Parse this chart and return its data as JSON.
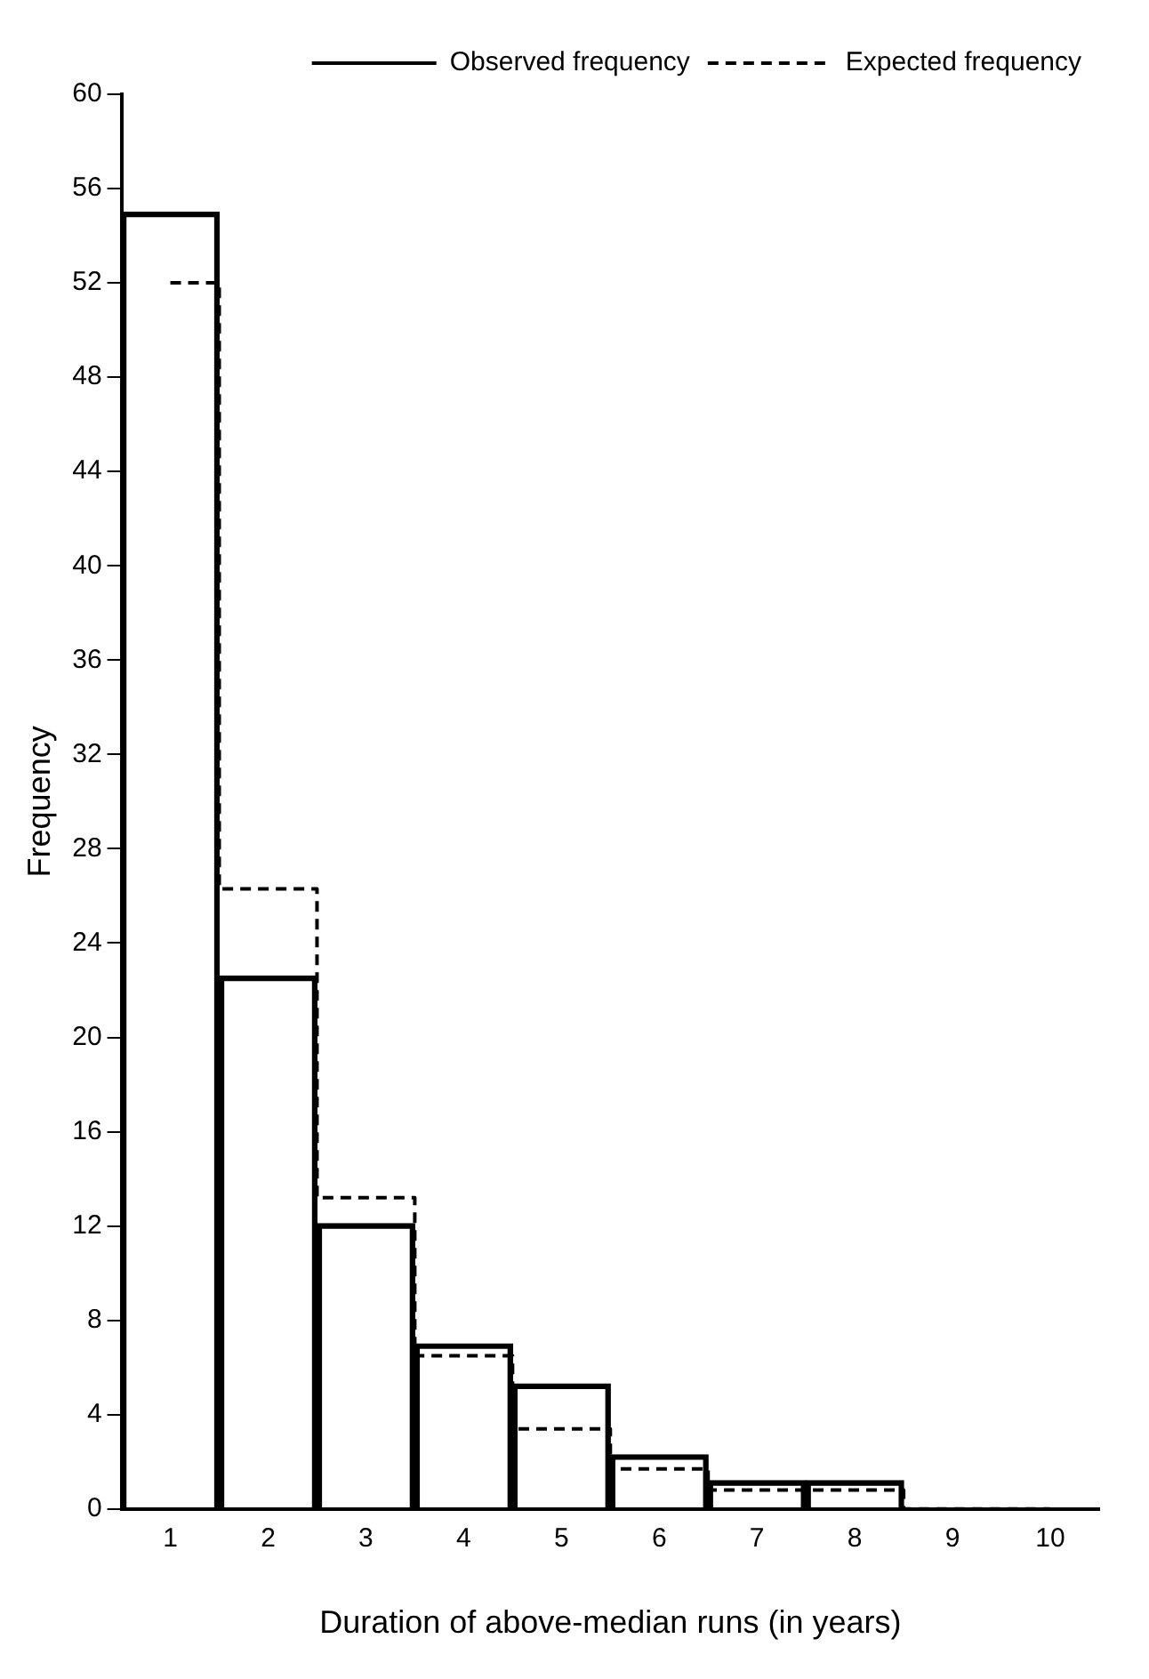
{
  "chart_data": {
    "type": "bar",
    "xlabel": "Duration of above-median runs (in years)",
    "ylabel": "Frequency",
    "categories": [
      "1",
      "2",
      "3",
      "4",
      "5",
      "6",
      "7",
      "8",
      "9",
      "10"
    ],
    "series": [
      {
        "name": "Observed frequency",
        "color": "#000000",
        "values": [
          55,
          22.6,
          12.1,
          7,
          5.3,
          2.3,
          1.2,
          1.2,
          0,
          0
        ]
      },
      {
        "name": "Expected frequency",
        "type": "step",
        "line_style": "dashed",
        "color": "#000000",
        "values": [
          52,
          26.3,
          13.2,
          6.5,
          3.4,
          1.7,
          0.8,
          0.8,
          0,
          0
        ]
      }
    ],
    "ylim": [
      0,
      60
    ],
    "yticks": [
      0,
      4,
      8,
      12,
      16,
      20,
      24,
      28,
      32,
      36,
      40,
      44,
      48,
      52,
      56,
      60
    ],
    "grid": false,
    "legend": "top right",
    "marker": "none"
  }
}
